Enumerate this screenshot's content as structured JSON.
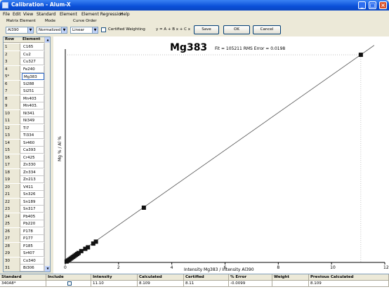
{
  "window": {
    "title": "Calibration - Alum-X"
  },
  "menu": [
    "File",
    "Edit",
    "View",
    "Standard",
    "Element",
    "Element Regression",
    "Help"
  ],
  "toolbar": {
    "matrix_label": "Matrix Element",
    "matrix_value": "Al390",
    "mode_label": "Mode",
    "mode_value": "Normalized",
    "curve_label": "Curve Order",
    "curve_value": "Linear",
    "certified_weighting": "Certified Weighting",
    "equation": "y = A + B x + C x",
    "save": "Save",
    "ok": "OK",
    "cancel": "Cancel"
  },
  "element_list": {
    "headers": {
      "row": "Row",
      "element": "Element"
    },
    "rows": [
      {
        "row": "1",
        "element": "C165"
      },
      {
        "row": "2",
        "element": "Cu2"
      },
      {
        "row": "3",
        "element": "Cu327"
      },
      {
        "row": "4",
        "element": "Fe240"
      },
      {
        "row": "5*",
        "element": "Mg383"
      },
      {
        "row": "6",
        "element": "Si288"
      },
      {
        "row": "7",
        "element": "Si251"
      },
      {
        "row": "8",
        "element": "Mn403"
      },
      {
        "row": "9",
        "element": "Mn403."
      },
      {
        "row": "10",
        "element": "Ni341"
      },
      {
        "row": "11",
        "element": "Ni349"
      },
      {
        "row": "12",
        "element": "Ti7"
      },
      {
        "row": "13",
        "element": "Ti334"
      },
      {
        "row": "14",
        "element": "Sr460"
      },
      {
        "row": "15",
        "element": "Ca393"
      },
      {
        "row": "16",
        "element": "Cr425"
      },
      {
        "row": "17",
        "element": "Zn330"
      },
      {
        "row": "18",
        "element": "Zn334"
      },
      {
        "row": "19",
        "element": "Zn213"
      },
      {
        "row": "20",
        "element": "V411"
      },
      {
        "row": "21",
        "element": "Sn326"
      },
      {
        "row": "22",
        "element": "Sn189"
      },
      {
        "row": "23",
        "element": "Sn317"
      },
      {
        "row": "24",
        "element": "Pb405"
      },
      {
        "row": "25",
        "element": "Pb220"
      },
      {
        "row": "26",
        "element": "P178"
      },
      {
        "row": "27",
        "element": "P177"
      },
      {
        "row": "28",
        "element": "P185"
      },
      {
        "row": "29",
        "element": "Sr407"
      },
      {
        "row": "30",
        "element": "Co340"
      },
      {
        "row": "31",
        "element": "Bi306"
      }
    ]
  },
  "chart_data": {
    "type": "scatter",
    "title": "Mg383",
    "subtitle": "Fit = 105211 RMS Error = 0.0198",
    "xlabel": "Intensity Mg383 / Intensity Al390",
    "ylabel": "Mg % / Al %",
    "xlim": [
      0,
      12
    ],
    "ylim": [
      0,
      11.3
    ],
    "xticks": [
      "0",
      "2",
      "4",
      "6",
      "8",
      "10",
      "12"
    ],
    "grid": false,
    "points": [
      {
        "x": 0.05,
        "y": 0.05
      },
      {
        "x": 0.1,
        "y": 0.1
      },
      {
        "x": 0.15,
        "y": 0.15
      },
      {
        "x": 0.2,
        "y": 0.2
      },
      {
        "x": 0.25,
        "y": 0.25
      },
      {
        "x": 0.3,
        "y": 0.3
      },
      {
        "x": 0.35,
        "y": 0.35
      },
      {
        "x": 0.4,
        "y": 0.4
      },
      {
        "x": 0.45,
        "y": 0.45
      },
      {
        "x": 0.5,
        "y": 0.5
      },
      {
        "x": 0.6,
        "y": 0.6
      },
      {
        "x": 0.75,
        "y": 0.72
      },
      {
        "x": 0.85,
        "y": 0.8
      },
      {
        "x": 1.05,
        "y": 1.0
      },
      {
        "x": 1.15,
        "y": 1.1
      },
      {
        "x": 2.95,
        "y": 2.9
      },
      {
        "x": 11.1,
        "y": 11.0
      }
    ],
    "fit_line": {
      "x": [
        0,
        11.6
      ],
      "y": [
        0,
        11.5
      ]
    }
  },
  "standard_grid": {
    "headers": [
      "Standard",
      "Include",
      "Intensity",
      "Calculated",
      "Certified",
      "% Error",
      "Weight",
      "Previous Calculated"
    ],
    "rows": [
      {
        "standard": "340A8*",
        "intensity": "11.10",
        "calculated": "8.109",
        "certified": "8.11",
        "error": "-0.0099",
        "weight": "",
        "previous": "8.109"
      }
    ]
  }
}
